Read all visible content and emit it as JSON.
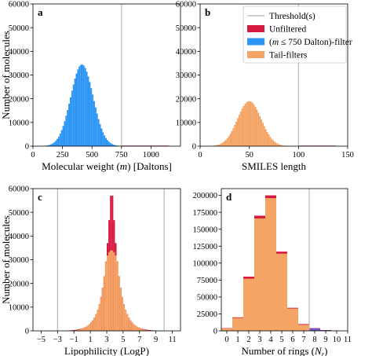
{
  "colors": {
    "unfiltered": "#d7193f",
    "mass_filter": "#2b95f6",
    "tail_filters": "#f4a465",
    "threshold": "#b0b0b0",
    "purple": "#6a59c2"
  },
  "legend": {
    "threshold": "Threshold(s)",
    "unfiltered": "Unfiltered",
    "mass_filter": "(m ≤ 750 Dalton)-filter",
    "tail_filters": "Tail-filters"
  },
  "chart_data": [
    {
      "panel": "a",
      "type": "bar",
      "xlabel": "Molecular weight (m) [Daltons]",
      "ylabel": "Number of molecules",
      "xlim": [
        0,
        1250
      ],
      "ylim": [
        0,
        60000
      ],
      "xticks": [
        0,
        250,
        500,
        750,
        1000
      ],
      "yticks": [
        0,
        10000,
        20000,
        30000,
        40000,
        50000,
        60000
      ],
      "thresholds": [
        750
      ],
      "histogram": {
        "type": "gaussian",
        "mean": 415,
        "sd": 95,
        "peak": 34500,
        "bin_width": 12.5,
        "range": [
          0,
          1250
        ]
      },
      "series": [
        {
          "name": "Unfiltered",
          "style": "unfiltered",
          "tail_only_above": 750,
          "tail_scale": 1.0
        },
        {
          "name": "(m ≤ 750 Dalton)-filter",
          "style": "mass_filter",
          "cutoff": 750
        }
      ]
    },
    {
      "panel": "b",
      "type": "bar",
      "xlabel": "SMILES length",
      "ylabel": "",
      "xlim": [
        0,
        150
      ],
      "ylim": [
        0,
        60000
      ],
      "xticks": [
        0,
        50,
        100,
        150
      ],
      "yticks": [
        0,
        10000,
        20000,
        30000,
        40000,
        50000,
        60000
      ],
      "thresholds": [
        100
      ],
      "histogram": {
        "type": "gaussian",
        "mean": 50,
        "sd": 12,
        "peak": 19000,
        "bin_width": 1.5,
        "range": [
          0,
          150
        ]
      },
      "series": [
        {
          "name": "Unfiltered",
          "style": "unfiltered",
          "tail_only_above": 100,
          "tail_scale": 1.0
        },
        {
          "name": "Tail-filters",
          "style": "tail_filters",
          "cutoff": 100
        }
      ]
    },
    {
      "panel": "c",
      "type": "bar",
      "xlabel": "Lipophilicity (LogP)",
      "ylabel": "Number of molecules",
      "xlim": [
        -6,
        12
      ],
      "ylim": [
        0,
        60000
      ],
      "xticks": [
        -5,
        -3,
        -1,
        1,
        3,
        5,
        7,
        9,
        11
      ],
      "yticks": [
        0,
        10000,
        20000,
        30000,
        40000,
        50000,
        60000
      ],
      "thresholds": [
        -3,
        10
      ],
      "histogram": {
        "type": "peaked",
        "center": 3.6,
        "bin_width": 0.2,
        "range": [
          -6,
          12
        ]
      },
      "series": [
        {
          "name": "Unfiltered",
          "style": "unfiltered",
          "peak": 57000,
          "width": 0.9
        },
        {
          "name": "Tail-filters",
          "style": "tail_filters",
          "peak": 34000,
          "width": 1.25
        }
      ]
    },
    {
      "panel": "d",
      "type": "bar",
      "xlabel": "Number of rings (N_r)",
      "ylabel": "",
      "xlim": [
        -0.5,
        11
      ],
      "ylim": [
        0,
        210000
      ],
      "xticks": [
        0,
        1,
        2,
        3,
        4,
        5,
        6,
        7,
        8,
        9,
        10,
        11
      ],
      "yticks": [
        0,
        25000,
        50000,
        75000,
        100000,
        125000,
        150000,
        175000,
        200000
      ],
      "thresholds": [
        7.5
      ],
      "categories": [
        0,
        1,
        2,
        3,
        4,
        5,
        6,
        7,
        8,
        9,
        10
      ],
      "series": [
        {
          "name": "Unfiltered",
          "style": "unfiltered",
          "values": [
            4000,
            20000,
            80000,
            170000,
            200000,
            117000,
            34000,
            10000,
            4000,
            1200,
            300
          ]
        },
        {
          "name": "Tail-filters",
          "style": "tail_filters",
          "values": [
            3500,
            19000,
            77000,
            166000,
            196000,
            114000,
            33000,
            9000,
            0,
            0,
            0
          ]
        },
        {
          "name": "",
          "style": "purple",
          "values": [
            0,
            0,
            0,
            0,
            0,
            0,
            0,
            0,
            3500,
            1000,
            0
          ]
        }
      ]
    }
  ]
}
